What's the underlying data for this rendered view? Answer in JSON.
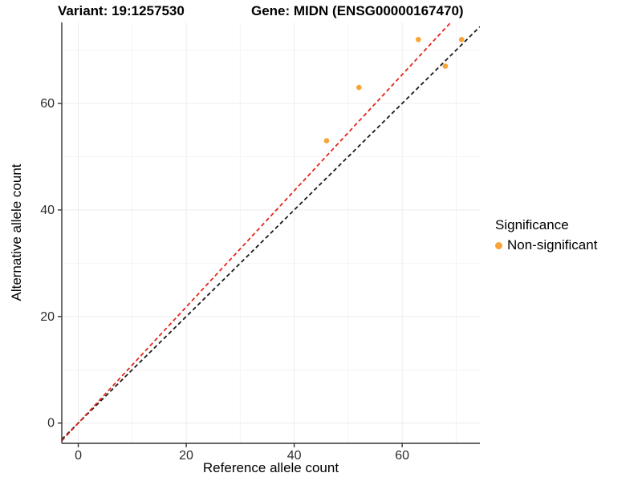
{
  "titles": {
    "variant": "Variant: 19:1257530",
    "gene": "Gene: MIDN (ENSG00000167470)"
  },
  "chart_data": {
    "type": "scatter",
    "title_left": "Variant: 19:1257530",
    "title_right": "Gene: MIDN (ENSG00000167470)",
    "xlabel": "Reference allele count",
    "ylabel": "Alternative allele count",
    "xlim": [
      -3.05,
      74.4
    ],
    "ylim": [
      -3.8,
      75.2
    ],
    "x_ticks": [
      0,
      20,
      40,
      60
    ],
    "y_ticks": [
      0,
      20,
      40,
      60
    ],
    "x_minor": [
      10,
      30,
      50,
      70
    ],
    "y_minor": [
      10,
      30,
      50,
      70
    ],
    "grid": true,
    "series": [
      {
        "name": "Non-significant",
        "color": "#F8A436",
        "points": [
          [
            46,
            53
          ],
          [
            52,
            63
          ],
          [
            63,
            72
          ],
          [
            68,
            67
          ],
          [
            71,
            72
          ]
        ]
      }
    ],
    "lines": [
      {
        "name": "identity-line",
        "slope": 1.0,
        "intercept": 0,
        "color": "#1a1a1a",
        "style": "dashed"
      },
      {
        "name": "fit-line",
        "slope": 1.09,
        "intercept": 0,
        "color": "#E5251B",
        "style": "dashed"
      }
    ],
    "legend": {
      "title": "Significance",
      "position": "right",
      "items": [
        {
          "label": "Non-significant",
          "color": "#F8A436"
        }
      ]
    },
    "colors": {
      "grid_major": "#ececec",
      "grid_minor": "#f4f4f4",
      "axis_line": "#333333",
      "tick_text": "#2b2b2b"
    }
  }
}
